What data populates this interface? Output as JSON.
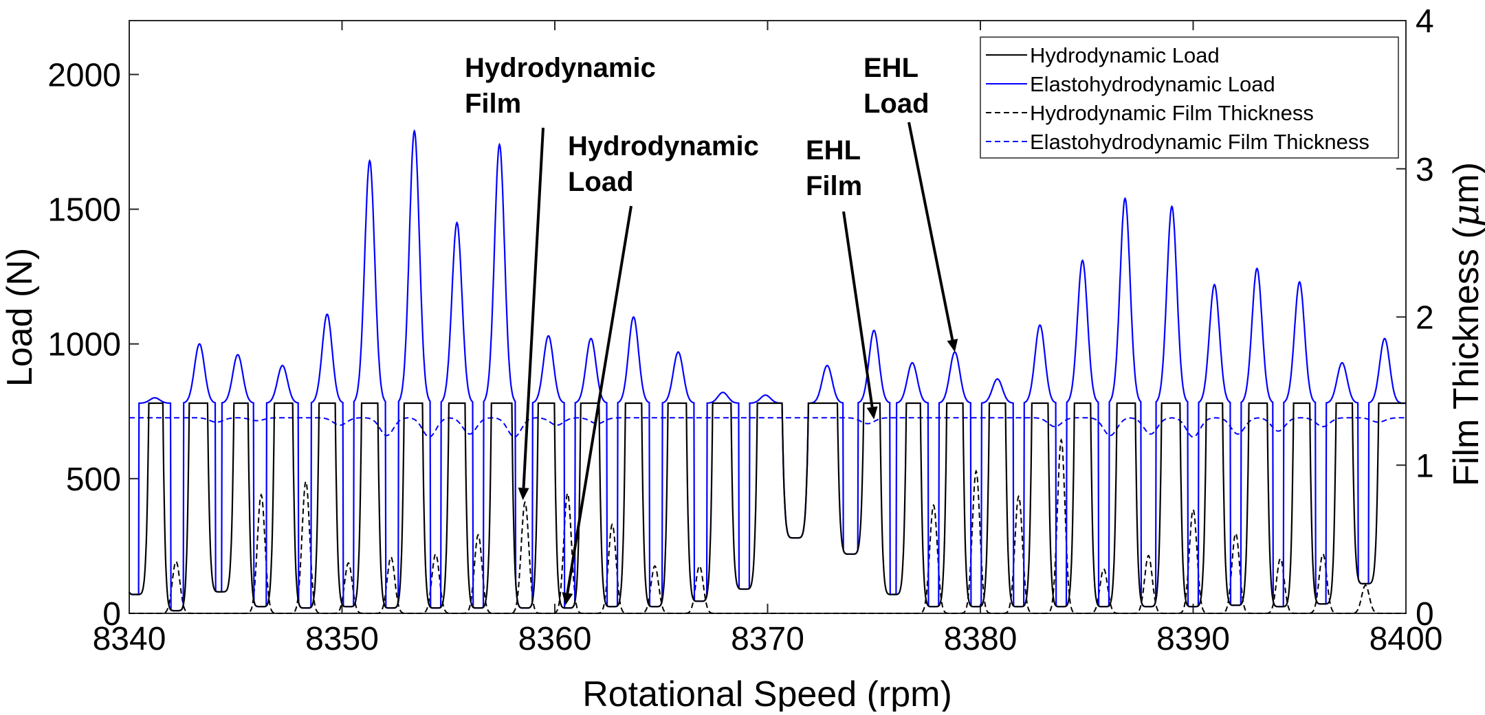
{
  "chart_data": {
    "type": "line",
    "title": "",
    "xlabel": "Rotational Speed (rpm)",
    "ylabel_left": "Load (N)",
    "ylabel_right": "Film Thickness ($\\mu$m)",
    "ylabel_right_parts": {
      "before": "Film Thickness (",
      "mu": "μ",
      "after": "m)"
    },
    "xlim": [
      8340,
      8400
    ],
    "ylim_left": [
      0,
      2200
    ],
    "ylim_right": [
      0,
      4
    ],
    "x_ticks": [
      8340,
      8350,
      8360,
      8370,
      8380,
      8390,
      8400
    ],
    "y_left_ticks": [
      0,
      500,
      1000,
      1500,
      2000
    ],
    "y_right_ticks": [
      0,
      1,
      2,
      3,
      4
    ],
    "grid": false,
    "legend_position": "top-right",
    "ehl_peaks": [
      {
        "x": 8341.2,
        "y": 800
      },
      {
        "x": 8343.3,
        "y": 1000
      },
      {
        "x": 8345.1,
        "y": 960
      },
      {
        "x": 8347.2,
        "y": 920
      },
      {
        "x": 8349.3,
        "y": 1110
      },
      {
        "x": 8351.3,
        "y": 1680
      },
      {
        "x": 8353.4,
        "y": 1790
      },
      {
        "x": 8355.4,
        "y": 1450
      },
      {
        "x": 8357.4,
        "y": 1740
      },
      {
        "x": 8359.7,
        "y": 1030
      },
      {
        "x": 8361.7,
        "y": 1020
      },
      {
        "x": 8363.7,
        "y": 1100
      },
      {
        "x": 8365.8,
        "y": 970
      },
      {
        "x": 8367.9,
        "y": 820
      },
      {
        "x": 8369.9,
        "y": 810
      },
      {
        "x": 8372.8,
        "y": 920
      },
      {
        "x": 8375.0,
        "y": 1050
      },
      {
        "x": 8376.8,
        "y": 930
      },
      {
        "x": 8378.8,
        "y": 970
      },
      {
        "x": 8380.8,
        "y": 870
      },
      {
        "x": 8382.8,
        "y": 1070
      },
      {
        "x": 8384.8,
        "y": 1310
      },
      {
        "x": 8386.8,
        "y": 1540
      },
      {
        "x": 8389.0,
        "y": 1510
      },
      {
        "x": 8391.0,
        "y": 1220
      },
      {
        "x": 8393.0,
        "y": 1280
      },
      {
        "x": 8395.0,
        "y": 1230
      },
      {
        "x": 8397.0,
        "y": 930
      },
      {
        "x": 8399.0,
        "y": 1020
      }
    ],
    "hydro_troughs": [
      {
        "x": 8340.3,
        "y": 70
      },
      {
        "x": 8342.2,
        "y": 10
      },
      {
        "x": 8344.3,
        "y": 80
      },
      {
        "x": 8346.2,
        "y": 25
      },
      {
        "x": 8348.3,
        "y": 20
      },
      {
        "x": 8350.3,
        "y": 25
      },
      {
        "x": 8352.3,
        "y": 20
      },
      {
        "x": 8354.4,
        "y": 20
      },
      {
        "x": 8356.4,
        "y": 20
      },
      {
        "x": 8358.6,
        "y": 20
      },
      {
        "x": 8360.6,
        "y": 20
      },
      {
        "x": 8362.7,
        "y": 25
      },
      {
        "x": 8364.7,
        "y": 25
      },
      {
        "x": 8366.8,
        "y": 45
      },
      {
        "x": 8368.9,
        "y": 90
      },
      {
        "x": 8371.3,
        "y": 280
      },
      {
        "x": 8373.9,
        "y": 220
      },
      {
        "x": 8375.9,
        "y": 70
      },
      {
        "x": 8377.8,
        "y": 25
      },
      {
        "x": 8379.8,
        "y": 25
      },
      {
        "x": 8381.8,
        "y": 25
      },
      {
        "x": 8383.8,
        "y": 25
      },
      {
        "x": 8385.8,
        "y": 25
      },
      {
        "x": 8387.9,
        "y": 25
      },
      {
        "x": 8390.0,
        "y": 25
      },
      {
        "x": 8392.0,
        "y": 30
      },
      {
        "x": 8394.1,
        "y": 25
      },
      {
        "x": 8396.1,
        "y": 35
      },
      {
        "x": 8398.1,
        "y": 110
      }
    ],
    "hydro_plateau_load": 780,
    "hydro_film_humps": [
      {
        "x": 8342.2,
        "y": 0.35
      },
      {
        "x": 8346.2,
        "y": 0.8
      },
      {
        "x": 8348.3,
        "y": 0.89
      },
      {
        "x": 8350.3,
        "y": 0.34
      },
      {
        "x": 8352.3,
        "y": 0.38
      },
      {
        "x": 8354.4,
        "y": 0.4
      },
      {
        "x": 8356.4,
        "y": 0.53
      },
      {
        "x": 8358.6,
        "y": 0.75
      },
      {
        "x": 8360.6,
        "y": 0.81
      },
      {
        "x": 8362.7,
        "y": 0.6
      },
      {
        "x": 8364.7,
        "y": 0.32
      },
      {
        "x": 8366.8,
        "y": 0.32
      },
      {
        "x": 8377.8,
        "y": 0.73
      },
      {
        "x": 8379.8,
        "y": 0.96
      },
      {
        "x": 8381.8,
        "y": 0.79
      },
      {
        "x": 8383.8,
        "y": 1.17
      },
      {
        "x": 8385.8,
        "y": 0.3
      },
      {
        "x": 8387.9,
        "y": 0.39
      },
      {
        "x": 8390.0,
        "y": 0.7
      },
      {
        "x": 8392.0,
        "y": 0.54
      },
      {
        "x": 8394.1,
        "y": 0.37
      },
      {
        "x": 8396.1,
        "y": 0.4
      },
      {
        "x": 8398.1,
        "y": 0.19
      }
    ],
    "ehl_film_base": 1.32,
    "ehl_film_dips": [
      {
        "x": 8344.1,
        "y": 1.29
      },
      {
        "x": 8346.0,
        "y": 1.3
      },
      {
        "x": 8349.9,
        "y": 1.27
      },
      {
        "x": 8352.1,
        "y": 1.2
      },
      {
        "x": 8354.1,
        "y": 1.19
      },
      {
        "x": 8356.0,
        "y": 1.21
      },
      {
        "x": 8358.1,
        "y": 1.19
      },
      {
        "x": 8360.1,
        "y": 1.27
      },
      {
        "x": 8362.0,
        "y": 1.28
      },
      {
        "x": 8374.7,
        "y": 1.28
      },
      {
        "x": 8383.5,
        "y": 1.26
      },
      {
        "x": 8386.1,
        "y": 1.2
      },
      {
        "x": 8388.0,
        "y": 1.21
      },
      {
        "x": 8390.0,
        "y": 1.19
      },
      {
        "x": 8392.1,
        "y": 1.21
      },
      {
        "x": 8394.0,
        "y": 1.23
      },
      {
        "x": 8396.1,
        "y": 1.26
      },
      {
        "x": 8398.7,
        "y": 1.29
      }
    ],
    "legend": [
      {
        "label": "Hydrodynamic Load",
        "color": "#000000",
        "dashed": false
      },
      {
        "label": "Elastohydrodynamic Load",
        "color": "#0000ff",
        "dashed": false
      },
      {
        "label": "Hydrodynamic Film Thickness",
        "color": "#000000",
        "dashed": true
      },
      {
        "label": "Elastohydrodynamic Film Thickness",
        "color": "#0000ff",
        "dashed": true
      }
    ],
    "annotations": [
      {
        "lines": [
          "Hydrodynamic",
          "Film"
        ],
        "target": {
          "x": 8358.5,
          "y": 420
        }
      },
      {
        "lines": [
          "Hydrodynamic",
          "Load"
        ],
        "target": {
          "x": 8360.5,
          "y": 30
        }
      },
      {
        "lines": [
          "EHL",
          "Film"
        ],
        "target": {
          "x": 8375.0,
          "y": 720
        }
      },
      {
        "lines": [
          "EHL",
          "Load"
        ],
        "target": {
          "x": 8378.8,
          "y": 970
        }
      }
    ]
  }
}
